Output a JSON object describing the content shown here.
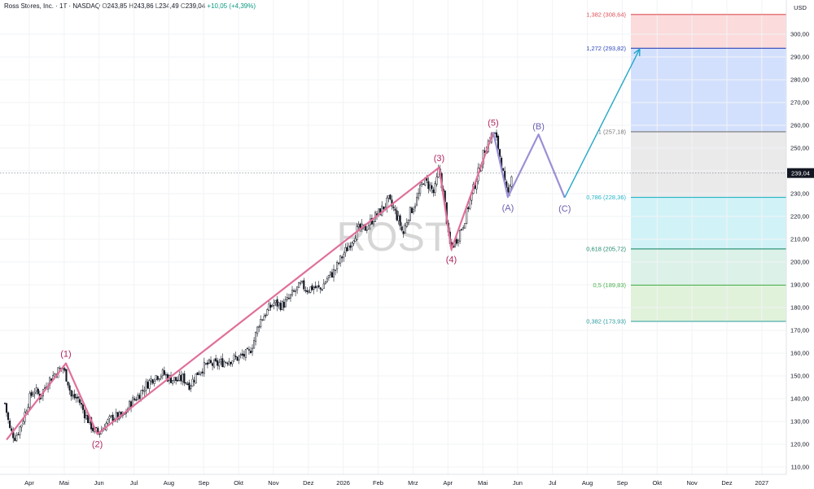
{
  "header": {
    "symbol": "Ross Stores, Inc. · 1T · NASDAQ",
    "o_label": "O",
    "o_value": "243,85",
    "h_label": "H",
    "h_value": "243,86",
    "l_label": "L",
    "l_value": "234,49",
    "c_label": "C",
    "c_value": "239,04",
    "change": "+10,05 (+4,39%)"
  },
  "watermark": "ROST",
  "colors": {
    "up": "#089981",
    "down": "#f23645",
    "candle": "#131722",
    "wave": "#e0709a",
    "wave_label": "#b0245e",
    "abc": "#9b8fd6",
    "abc_label": "#6a5fb0",
    "projection": "#22a7c9"
  },
  "chart_data": {
    "type": "candlestick",
    "currency": "USD",
    "last_price": 239.04,
    "last_price_label": "239,04",
    "ylim": [
      108,
      312
    ],
    "y_ticks": [
      {
        "v": 110,
        "label": "110,00"
      },
      {
        "v": 120,
        "label": "120,00"
      },
      {
        "v": 130,
        "label": "130,00"
      },
      {
        "v": 140,
        "label": "140,00"
      },
      {
        "v": 150,
        "label": "150,00"
      },
      {
        "v": 160,
        "label": "160,00"
      },
      {
        "v": 170,
        "label": "170,00"
      },
      {
        "v": 180,
        "label": "180,00"
      },
      {
        "v": 190,
        "label": "190,00"
      },
      {
        "v": 200,
        "label": "200,00"
      },
      {
        "v": 210,
        "label": "210,00"
      },
      {
        "v": 220,
        "label": "220,00"
      },
      {
        "v": 230,
        "label": "230,00"
      },
      {
        "v": 240,
        "label": "240,00"
      },
      {
        "v": 250,
        "label": "250,00"
      },
      {
        "v": 260,
        "label": "260,00"
      },
      {
        "v": 270,
        "label": "270,00"
      },
      {
        "v": 280,
        "label": "280,00"
      },
      {
        "v": 290,
        "label": "290,00"
      },
      {
        "v": 300,
        "label": "300,00"
      }
    ],
    "x_ticks": [
      {
        "m": 1,
        "label": "Apr"
      },
      {
        "m": 2,
        "label": "Mai"
      },
      {
        "m": 3,
        "label": "Jun"
      },
      {
        "m": 4,
        "label": "Jul"
      },
      {
        "m": 5,
        "label": "Aug"
      },
      {
        "m": 6,
        "label": "Sep"
      },
      {
        "m": 7,
        "label": "Okt"
      },
      {
        "m": 8,
        "label": "Nov"
      },
      {
        "m": 9,
        "label": "Dez"
      },
      {
        "m": 10,
        "label": "2026"
      },
      {
        "m": 11,
        "label": "Feb"
      },
      {
        "m": 12,
        "label": "Mrz"
      },
      {
        "m": 13,
        "label": "Apr"
      },
      {
        "m": 14,
        "label": "Mai"
      },
      {
        "m": 15,
        "label": "Jun"
      },
      {
        "m": 16,
        "label": "Jul"
      },
      {
        "m": 17,
        "label": "Aug"
      },
      {
        "m": 18,
        "label": "Sep"
      },
      {
        "m": 19,
        "label": "Okt"
      },
      {
        "m": 20,
        "label": "Nov"
      },
      {
        "m": 21,
        "label": "Dez"
      },
      {
        "m": 22,
        "label": "2027"
      }
    ],
    "price_path": [
      [
        0.3,
        138
      ],
      [
        0.45,
        126
      ],
      [
        0.6,
        123
      ],
      [
        0.8,
        130
      ],
      [
        1.0,
        140
      ],
      [
        1.15,
        144
      ],
      [
        1.3,
        141
      ],
      [
        1.55,
        148
      ],
      [
        1.8,
        152
      ],
      [
        1.95,
        154
      ],
      [
        2.1,
        148
      ],
      [
        2.2,
        141
      ],
      [
        2.4,
        140
      ],
      [
        2.6,
        133
      ],
      [
        2.85,
        126
      ],
      [
        3.0,
        125
      ],
      [
        3.2,
        129
      ],
      [
        3.4,
        132
      ],
      [
        3.7,
        132
      ],
      [
        3.9,
        138
      ],
      [
        4.1,
        141
      ],
      [
        4.35,
        146
      ],
      [
        4.6,
        150
      ],
      [
        4.85,
        151
      ],
      [
        5.0,
        149
      ],
      [
        5.25,
        148
      ],
      [
        5.4,
        149
      ],
      [
        5.6,
        146
      ],
      [
        5.85,
        152
      ],
      [
        6.1,
        155
      ],
      [
        6.35,
        155
      ],
      [
        6.7,
        157
      ],
      [
        7.0,
        158
      ],
      [
        7.3,
        160
      ],
      [
        7.45,
        166
      ],
      [
        7.6,
        174
      ],
      [
        7.8,
        178
      ],
      [
        8.0,
        182
      ],
      [
        8.25,
        181
      ],
      [
        8.4,
        183
      ],
      [
        8.55,
        186
      ],
      [
        8.8,
        190
      ],
      [
        8.95,
        188
      ],
      [
        9.15,
        189
      ],
      [
        9.35,
        188
      ],
      [
        9.55,
        193
      ],
      [
        9.75,
        196
      ],
      [
        9.95,
        202
      ],
      [
        10.15,
        207
      ],
      [
        10.4,
        214
      ],
      [
        10.65,
        215
      ],
      [
        10.85,
        219
      ],
      [
        11.05,
        222
      ],
      [
        11.3,
        227
      ],
      [
        11.45,
        223
      ],
      [
        11.6,
        218
      ],
      [
        11.72,
        212
      ],
      [
        11.85,
        220
      ],
      [
        12.1,
        227
      ],
      [
        12.3,
        236
      ],
      [
        12.5,
        233
      ],
      [
        12.6,
        230
      ],
      [
        12.75,
        241
      ],
      [
        12.85,
        232
      ],
      [
        12.95,
        222
      ],
      [
        13.0,
        212
      ],
      [
        13.08,
        206
      ],
      [
        13.25,
        210
      ],
      [
        13.45,
        217
      ],
      [
        13.65,
        228
      ],
      [
        13.85,
        238
      ],
      [
        14.05,
        249
      ],
      [
        14.2,
        254
      ],
      [
        14.32,
        257
      ],
      [
        14.42,
        252
      ],
      [
        14.55,
        242
      ],
      [
        14.65,
        232
      ],
      [
        14.72,
        229
      ],
      [
        14.8,
        238
      ],
      [
        14.85,
        239
      ]
    ],
    "elliott_waves": [
      {
        "label": "(1)",
        "m": 2.05,
        "v": 155.5
      },
      {
        "label": "(2)",
        "m": 2.95,
        "v": 124.5
      },
      {
        "label": "(3)",
        "m": 12.75,
        "v": 241.5
      },
      {
        "label": "(4)",
        "m": 13.1,
        "v": 205.5
      },
      {
        "label": "(5)",
        "m": 14.3,
        "v": 257.0
      }
    ],
    "wave_start": {
      "m": 0.35,
      "v": 122
    },
    "abc_waves": [
      {
        "label": "(A)",
        "m": 14.72,
        "v": 228.5
      },
      {
        "label": "(B)",
        "m": 15.6,
        "v": 256.0
      },
      {
        "label": "(C)",
        "m": 16.35,
        "v": 228.3
      }
    ],
    "projection_end": {
      "m": 18.5,
      "v": 293.5
    },
    "fibonacci": [
      {
        "ratio": "1,382",
        "price": 308.64,
        "label": "1,382 (308,64)",
        "line": "#e0505a",
        "fill": "rgba(248,190,190,0.55)"
      },
      {
        "ratio": "1,272",
        "price": 293.82,
        "label": "1,272 (293,82)",
        "line": "#2e47b8",
        "fill": "rgba(196,214,252,0.75)"
      },
      {
        "ratio": "1",
        "price": 257.18,
        "label": "1 (257,18)",
        "line": "#777777",
        "fill": "rgba(220,220,220,0.6)"
      },
      {
        "ratio": "0,786",
        "price": 228.36,
        "label": "0,786 (228,36)",
        "line": "#26b5c8",
        "fill": "rgba(190,238,244,0.7)"
      },
      {
        "ratio": "0,618",
        "price": 205.72,
        "label": "0,618 (205,72)",
        "line": "#1f8a6e",
        "fill": "rgba(205,236,222,0.7)"
      },
      {
        "ratio": "0,5",
        "price": 189.83,
        "label": "0,5 (189,83)",
        "line": "#4caf50",
        "fill": "rgba(214,238,206,0.75)"
      },
      {
        "ratio": "0,382",
        "price": 173.93,
        "label": "0,382 (173,93)",
        "line": "#2a9b9e",
        "fill": "none"
      }
    ]
  }
}
